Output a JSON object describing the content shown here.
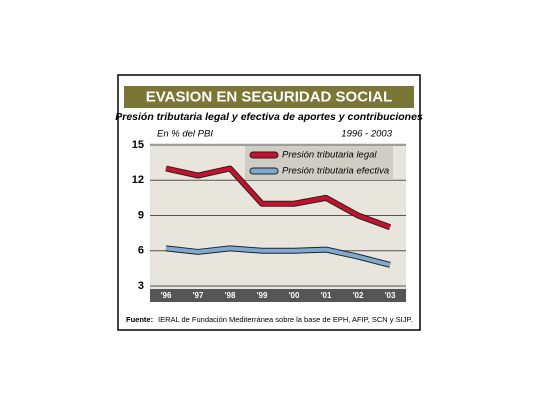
{
  "chart_data": {
    "type": "line",
    "title": "EVASION EN SEGURIDAD SOCIAL",
    "subtitle": "Presión tributaria legal y efectiva de aportes y contribuciones",
    "ylabel": "En % del PBI",
    "period": "1996 - 2003",
    "categories": [
      "'96",
      "'97",
      "'98",
      "'99",
      "'00",
      "'01",
      "'02",
      "'03"
    ],
    "series": [
      {
        "name": "Presión tributaria legal",
        "color": "#c8102e",
        "values": [
          13,
          12.4,
          13,
          10,
          10,
          10.5,
          9,
          8
        ]
      },
      {
        "name": "Presión tributaria efectiva",
        "color": "#7fa9d0",
        "values": [
          6.2,
          5.9,
          6.2,
          6,
          6,
          6.1,
          5.5,
          4.8
        ]
      }
    ],
    "ylim": [
      3,
      15
    ],
    "yticks": [
      3,
      6,
      9,
      12,
      15
    ],
    "grid": true,
    "legend": "upper right",
    "source_label": "Fuente:",
    "source": "IERAL de Fundación Mediterránea sobre la base de EPH, AFIP, SCN y SIJP."
  }
}
